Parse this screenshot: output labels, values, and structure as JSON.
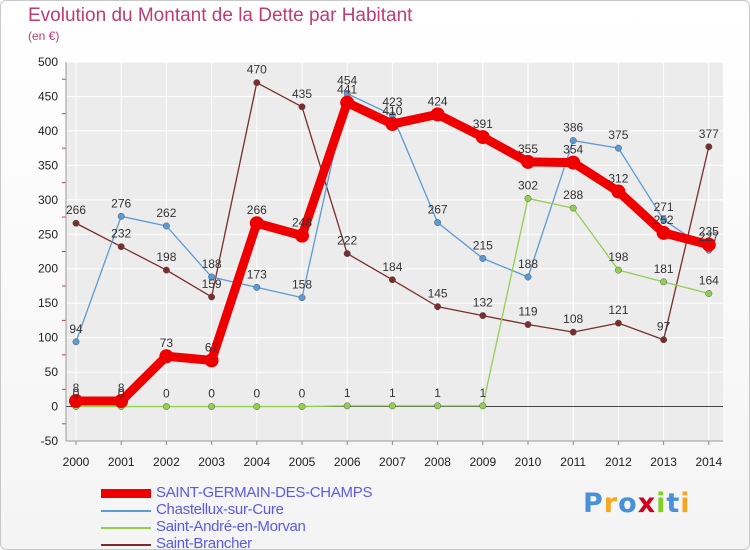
{
  "chart_data": {
    "type": "line",
    "title": "Evolution du Montant de la Dette par Habitant",
    "subtitle": "(en €)",
    "xlabel": "",
    "ylabel": "",
    "x": [
      "2000",
      "2001",
      "2002",
      "2003",
      "2004",
      "2005",
      "2006",
      "2007",
      "2008",
      "2009",
      "2010",
      "2011",
      "2012",
      "2013",
      "2014"
    ],
    "ylim": [
      -50,
      500
    ],
    "yticks": [
      -50,
      0,
      50,
      100,
      150,
      200,
      250,
      300,
      350,
      400,
      450,
      500
    ],
    "grid": true,
    "legend_position": "bottom-left",
    "series": [
      {
        "name": "SAINT-GERMAIN-DES-CHAMPS",
        "color": "#ee0000",
        "values": [
          8,
          8,
          73,
          67,
          266,
          248,
          441,
          410,
          424,
          391,
          355,
          354,
          312,
          252,
          235
        ]
      },
      {
        "name": "Chastellux-sur-Cure",
        "color": "#5b9bd5",
        "values": [
          94,
          276,
          262,
          188,
          173,
          158,
          454,
          423,
          267,
          215,
          188,
          386,
          375,
          271,
          227
        ]
      },
      {
        "name": "Saint-André-en-Morvan",
        "color": "#92d050",
        "values": [
          0,
          0,
          0,
          0,
          0,
          0,
          1,
          1,
          1,
          1,
          302,
          288,
          198,
          181,
          164
        ]
      },
      {
        "name": "Saint-Brancher",
        "color": "#7b2c2c",
        "values": [
          266,
          232,
          198,
          159,
          null,
          435,
          222,
          184,
          145,
          132,
          119,
          108,
          121,
          97,
          377
        ]
      }
    ],
    "brancher_2004": 470
  },
  "logo": {
    "text": "Proxiti",
    "letter_colors": [
      "#4a90d9",
      "#f5a623",
      "#4a90d9",
      "#d0021b",
      "#7ed321",
      "#4a90d9",
      "#f5a623"
    ]
  }
}
